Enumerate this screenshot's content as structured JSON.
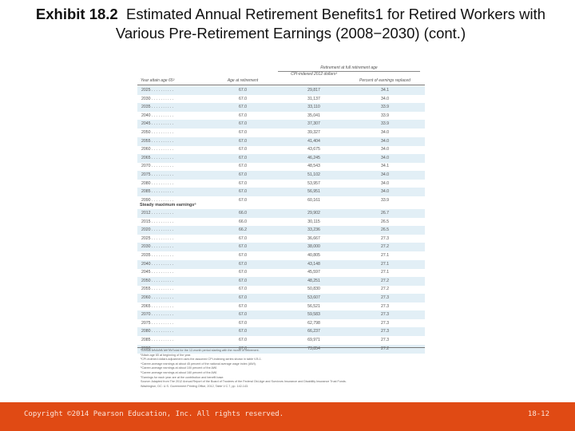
{
  "slide": {
    "title_bold": "Exhibit 18.2",
    "title_rest": "Estimated Annual Retirement Benefits1 for Retired Workers with Various Pre-Retirement Earnings (2008−2030) (cont.)",
    "copyright": "Copyright ©2014 Pearson Education, Inc. All rights reserved.",
    "page_number": "18-12",
    "accent_color": "#e04a14"
  },
  "table": {
    "span_header": "Retirement at full retirement age",
    "columns": [
      "Year attain age 65²",
      "Age at retirement",
      "CPI-indexed 2012 dollars³",
      "Percent of earnings replaced"
    ],
    "section1_rows": [
      [
        "2025 . . . . . . . . . .",
        "67.0",
        "29,817",
        "34.1"
      ],
      [
        "2030 . . . . . . . . . .",
        "67.0",
        "31,137",
        "34.0"
      ],
      [
        "2035 . . . . . . . . . .",
        "67.0",
        "33,110",
        "33.9"
      ],
      [
        "2040 . . . . . . . . . .",
        "67.0",
        "35,041",
        "33.9"
      ],
      [
        "2045 . . . . . . . . . .",
        "67.0",
        "37,307",
        "33.9"
      ],
      [
        "2050 . . . . . . . . . .",
        "67.0",
        "39,327",
        "34.0"
      ],
      [
        "2055 . . . . . . . . . .",
        "67.0",
        "41,404",
        "34.0"
      ],
      [
        "2060 . . . . . . . . . .",
        "67.0",
        "43,675",
        "34.0"
      ],
      [
        "2065 . . . . . . . . . .",
        "67.0",
        "46,245",
        "34.0"
      ],
      [
        "2070 . . . . . . . . . .",
        "67.0",
        "48,543",
        "34.1"
      ],
      [
        "2075 . . . . . . . . . .",
        "67.0",
        "51,102",
        "34.0"
      ],
      [
        "2080 . . . . . . . . . .",
        "67.0",
        "53,957",
        "34.0"
      ],
      [
        "2085 . . . . . . . . . .",
        "67.0",
        "56,951",
        "34.0"
      ],
      [
        "2090 . . . . . . . . . .",
        "67.0",
        "60,161",
        "33.9"
      ]
    ],
    "section2_label": "Steady maximum earnings⁶",
    "section2_rows": [
      [
        "2012 . . . . . . . . . .",
        "66.0",
        "29,902",
        "26.7"
      ],
      [
        "2015 . . . . . . . . . .",
        "66.0",
        "30,115",
        "26.5"
      ],
      [
        "2020 . . . . . . . . . .",
        "66.2",
        "33,236",
        "26.5"
      ],
      [
        "2025 . . . . . . . . . .",
        "67.0",
        "36,667",
        "27.3"
      ],
      [
        "2030 . . . . . . . . . .",
        "67.0",
        "38,000",
        "27.2"
      ],
      [
        "2035 . . . . . . . . . .",
        "67.0",
        "40,805",
        "27.1"
      ],
      [
        "2040 . . . . . . . . . .",
        "67.0",
        "43,148",
        "27.1"
      ],
      [
        "2045 . . . . . . . . . .",
        "67.0",
        "45,597",
        "27.1"
      ],
      [
        "2050 . . . . . . . . . .",
        "67.0",
        "48,251",
        "27.2"
      ],
      [
        "2055 . . . . . . . . . .",
        "67.0",
        "50,830",
        "27.2"
      ],
      [
        "2060 . . . . . . . . . .",
        "67.0",
        "53,607",
        "27.3"
      ],
      [
        "2065 . . . . . . . . . .",
        "67.0",
        "56,521",
        "27.3"
      ],
      [
        "2070 . . . . . . . . . .",
        "67.0",
        "59,583",
        "27.3"
      ],
      [
        "2075 . . . . . . . . . .",
        "67.0",
        "62,798",
        "27.3"
      ],
      [
        "2080 . . . . . . . . . .",
        "67.0",
        "66,237",
        "27.3"
      ],
      [
        "2085 . . . . . . . . . .",
        "67.0",
        "69,971",
        "27.3"
      ],
      [
        "2090 . . . . . . . . . .",
        "67.0",
        "73,854",
        "27.2"
      ]
    ],
    "footnotes": [
      "¹Annual amounts are the total for the 12-month period starting with the month of retirement.",
      "²Attain age 65 at beginning of the year.",
      "³CPI-indexed dollars adjustment uses the assumed CPI-indexing series shown in table V.B.1.",
      "⁴Career-average earnings at about 45 percent of the national average wage index (AWI).",
      "⁵Career-average earnings at about 100 percent of the AWI.",
      "⁶Career-average earnings at about 160 percent of the AWI.",
      "⁷Earnings for each year are at the contribution and benefit base.",
      "Source: Adapted from The 2012 Annual Report of the Board of Trustees of the Federal Old-Age and Survivors Insurance and Disability Insurance Trust Funds.",
      "Washington, DC: U.S. Government Printing Office, 2012, Table V.C.7, pp. 142-143."
    ]
  }
}
